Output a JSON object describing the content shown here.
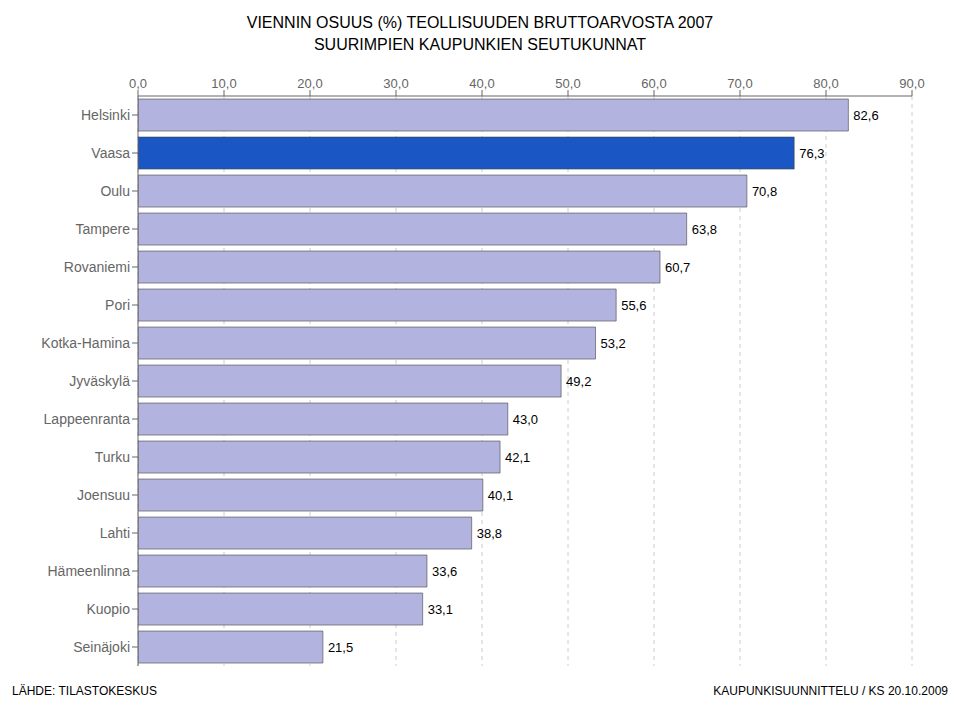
{
  "chart_data": {
    "type": "bar",
    "orientation": "horizontal",
    "title": "VIENNIN OSUUS (%) TEOLLISUUDEN BRUTTOARVOSTA 2007",
    "subtitle": "SUURIMPIEN KAUPUNKIEN SEUTUKUNNAT",
    "categories": [
      "Helsinki",
      "Vaasa",
      "Oulu",
      "Tampere",
      "Rovaniemi",
      "Pori",
      "Kotka-Hamina",
      "Jyväskylä",
      "Lappeenranta",
      "Turku",
      "Joensuu",
      "Lahti",
      "Hämeenlinna",
      "Kuopio",
      "Seinäjoki"
    ],
    "values": [
      82.6,
      76.3,
      70.8,
      63.8,
      60.7,
      55.6,
      53.2,
      49.2,
      43.0,
      42.1,
      40.1,
      38.8,
      33.6,
      33.1,
      21.5
    ],
    "value_labels": [
      "82,6",
      "76,3",
      "70,8",
      "63,8",
      "60,7",
      "55,6",
      "53,2",
      "49,2",
      "43,0",
      "42,1",
      "40,1",
      "38,8",
      "33,6",
      "33,1",
      "21,5"
    ],
    "data_labels": true,
    "colors": [
      "#b3b3e0",
      "#1a56c4",
      "#b3b3e0",
      "#b3b3e0",
      "#b3b3e0",
      "#b3b3e0",
      "#b3b3e0",
      "#b3b3e0",
      "#b3b3e0",
      "#b3b3e0",
      "#b3b3e0",
      "#b3b3e0",
      "#b3b3e0",
      "#b3b3e0",
      "#b3b3e0"
    ],
    "xlim": [
      0,
      90
    ],
    "xticks": [
      {
        "value": 0,
        "label": "0,0"
      },
      {
        "value": 10,
        "label": "10,0"
      },
      {
        "value": 20,
        "label": "20,0"
      },
      {
        "value": 30,
        "label": "30,0"
      },
      {
        "value": 40,
        "label": "40,0"
      },
      {
        "value": 50,
        "label": "50,0"
      },
      {
        "value": 60,
        "label": "60,0"
      },
      {
        "value": 70,
        "label": "70,0"
      },
      {
        "value": 80,
        "label": "80,0"
      },
      {
        "value": 90,
        "label": "90,0"
      }
    ],
    "grid": true,
    "annotations": [
      "LÄHDE: TILASTOKESKUS",
      "KAUPUNKISUUNNITTELU / KS 20.10.2009"
    ]
  }
}
